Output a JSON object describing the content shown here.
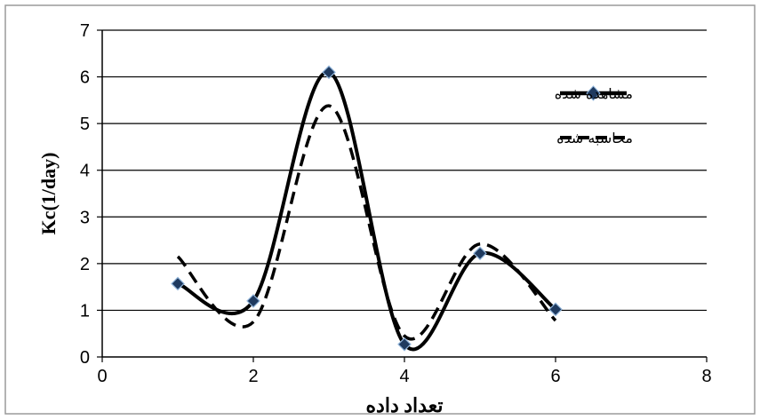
{
  "chart_data": {
    "type": "line",
    "title": "",
    "xlabel": "تعداد داده",
    "ylabel": "Kc(1/day)",
    "xlim": [
      0,
      8
    ],
    "ylim": [
      0,
      7
    ],
    "x_ticks": [
      0,
      2,
      4,
      6,
      8
    ],
    "y_ticks": [
      0,
      1,
      2,
      3,
      4,
      5,
      6,
      7
    ],
    "grid": "horizontal",
    "legend_position": "top-right",
    "smooth": true,
    "series": [
      {
        "name": "مشاهده شده",
        "style": "solid",
        "marker": "diamond",
        "color": "#000000",
        "marker_color": "#1f3a5f",
        "x": [
          1,
          2,
          3,
          4,
          5,
          6
        ],
        "y": [
          1.57,
          1.2,
          6.1,
          0.27,
          2.22,
          1.02
        ]
      },
      {
        "name": "محاسبه شده",
        "style": "dashed",
        "marker": "none",
        "color": "#000000",
        "x": [
          1,
          2,
          3,
          4,
          5,
          6
        ],
        "y": [
          2.15,
          0.75,
          5.38,
          0.45,
          2.42,
          0.78
        ]
      }
    ]
  }
}
